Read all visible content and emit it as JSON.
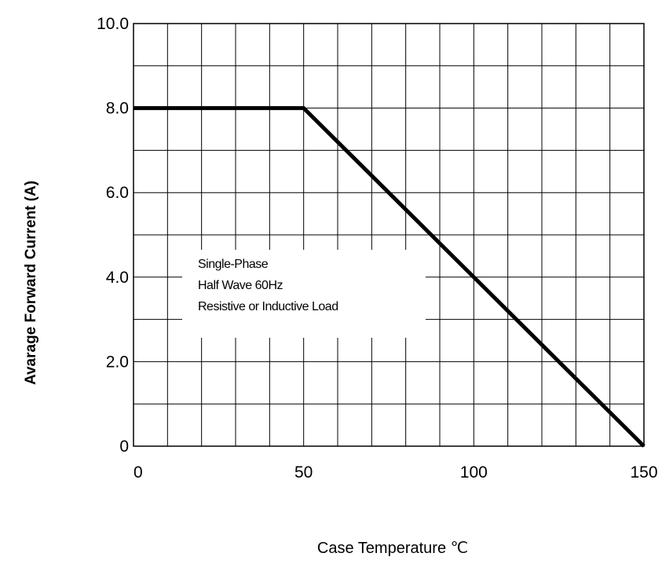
{
  "chart_data": {
    "type": "line",
    "xlabel": "Case Temperature ℃",
    "ylabel": "Avarage Forward Current (A)",
    "xlim": [
      0,
      150
    ],
    "ylim": [
      0,
      10
    ],
    "x_ticks": [
      "0",
      "50",
      "100",
      "150"
    ],
    "y_ticks": [
      "0",
      "2.0",
      "4.0",
      "6.0",
      "8.0",
      "10.0"
    ],
    "grid": true,
    "series": [
      {
        "x": [
          0,
          50,
          150
        ],
        "y": [
          8.0,
          8.0,
          0
        ]
      }
    ],
    "annotation": [
      "Single-Phase",
      "Half Wave 60Hz",
      "Resistive or Inductive Load"
    ]
  }
}
